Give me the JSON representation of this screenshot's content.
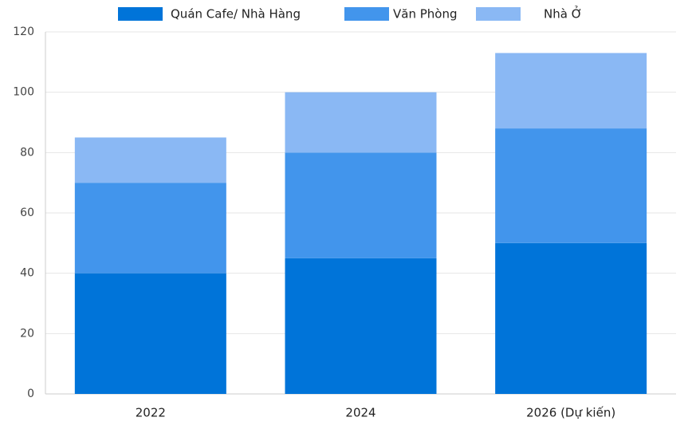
{
  "chart_data": {
    "type": "stacked_bar",
    "categories": [
      "2022",
      "2024",
      "2026 (Dự kiến)"
    ],
    "series": [
      {
        "name": "Quán Cafe/ Nhà Hàng",
        "color": "#0074d9",
        "values": [
          40,
          45,
          50
        ]
      },
      {
        "name": "Văn Phòng",
        "color": "#4295ec",
        "values": [
          30,
          35,
          38
        ]
      },
      {
        "name": "Nhà Ở",
        "color": "#8ab8f4",
        "values": [
          15,
          20,
          25
        ]
      }
    ],
    "ylim": [
      0,
      120
    ],
    "yticks": [
      0,
      20,
      40,
      60,
      80,
      100,
      120
    ],
    "grid": true,
    "legend": "top"
  }
}
